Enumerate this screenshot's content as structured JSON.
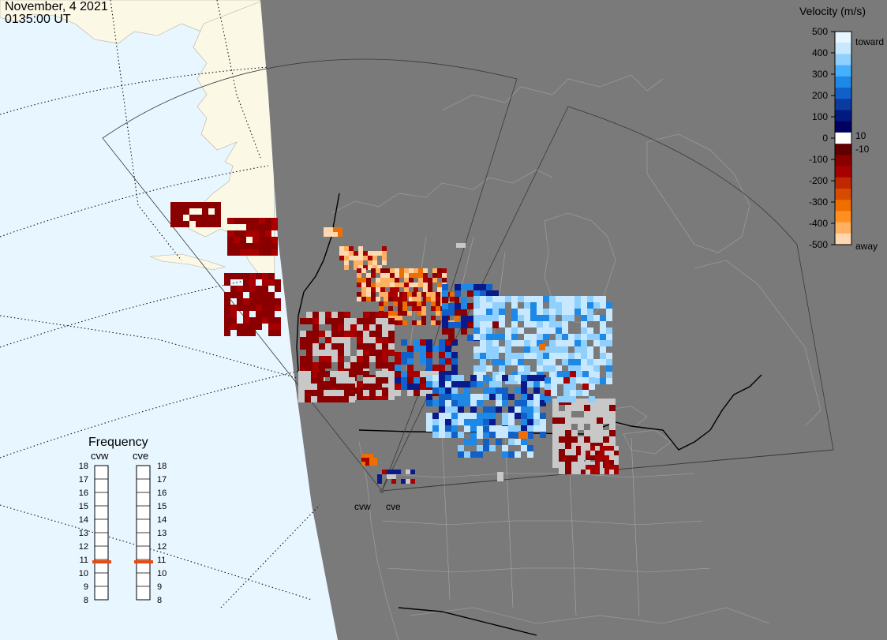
{
  "header": {
    "date": "November, 4 2021",
    "time": "0135:00 UT"
  },
  "colorbar": {
    "title": "Velocity (m/s)",
    "ticks": [
      "500",
      "400",
      "300",
      "200",
      "100",
      "0",
      "-100",
      "-200",
      "-300",
      "-400",
      "-500"
    ],
    "label_toward": "toward",
    "label_away": "away",
    "label_pos_threshold": "10",
    "label_neg_threshold": "-10",
    "colors": [
      "#e8f6ff",
      "#c8e8ff",
      "#8fd0ff",
      "#45b0ff",
      "#1e88e6",
      "#1060c8",
      "#0a3ca0",
      "#001a80",
      "#000060",
      "#ffffff",
      "#600000",
      "#8a0000",
      "#a80000",
      "#c02800",
      "#d84a00",
      "#ee6e00",
      "#ff9020",
      "#ffb060",
      "#ffd8b0"
    ]
  },
  "frequency_panel": {
    "title": "Frequency",
    "radars": [
      "cvw",
      "cve"
    ],
    "scale": [
      "18",
      "17",
      "16",
      "15",
      "14",
      "13",
      "12",
      "11",
      "10",
      "9",
      "8"
    ],
    "cvw_mhz": 11,
    "cve_mhz": 11,
    "marker_color": "#e84a10"
  },
  "radar_sites": {
    "west_label": "cvw",
    "east_label": "cve"
  },
  "map_colors": {
    "ocean": "#e8f6ff",
    "land_lit": "#fcf8e6",
    "night": "#7a7a7a",
    "borders": "#000000",
    "coast": "#999999",
    "ground_scatter": "#c8c8c8"
  }
}
